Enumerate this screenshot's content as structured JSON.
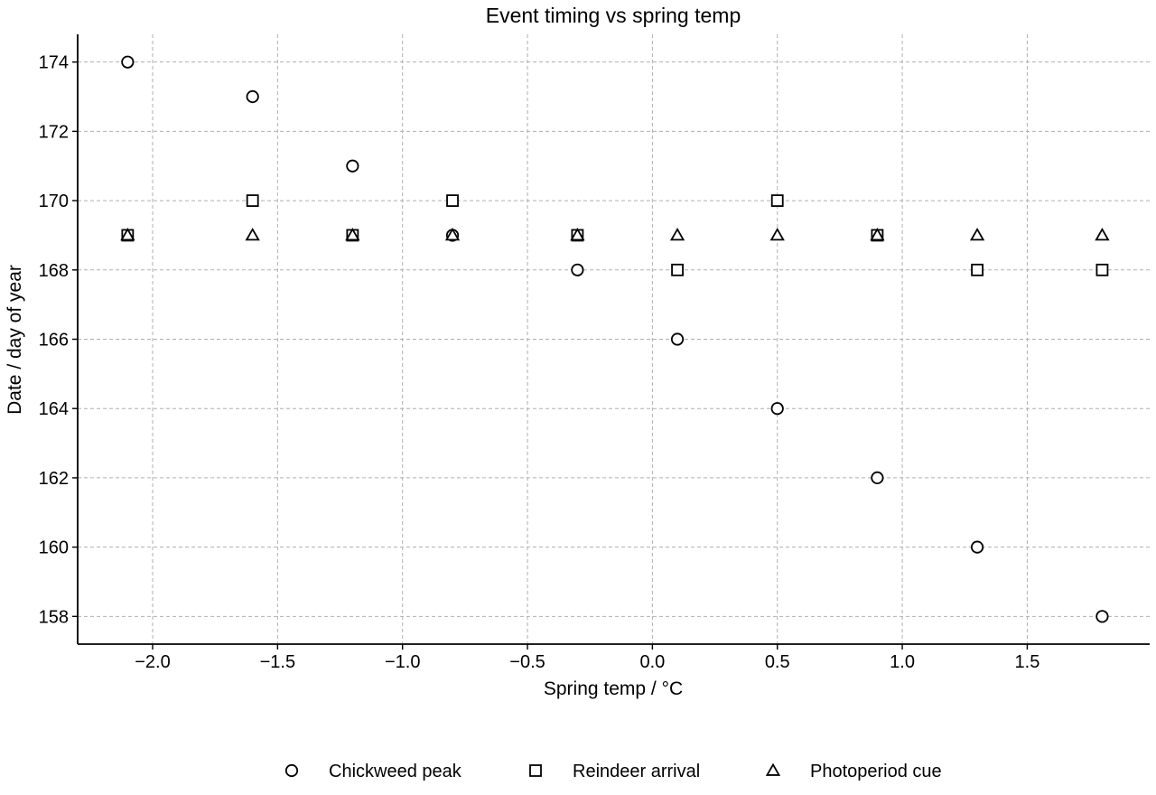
{
  "chart_data": {
    "type": "scatter",
    "title": "Event timing vs spring temp",
    "xlabel": "Spring temp / °C",
    "ylabel": "Date / day of year",
    "xlim": [
      -2.3,
      1.99
    ],
    "ylim": [
      157.2,
      174.8
    ],
    "xticks": [
      -2.0,
      -1.5,
      -1.0,
      -0.5,
      0.0,
      0.5,
      1.0,
      1.5
    ],
    "xtick_labels": [
      "−2.0",
      "−1.5",
      "−1.0",
      "−0.5",
      "0.0",
      "0.5",
      "1.0",
      "1.5"
    ],
    "yticks": [
      158,
      160,
      162,
      164,
      166,
      168,
      170,
      172,
      174
    ],
    "ytick_labels": [
      "158",
      "160",
      "162",
      "164",
      "166",
      "168",
      "170",
      "172",
      "174"
    ],
    "grid": true,
    "legend_position": "bottom-center",
    "x": [
      -2.1,
      -1.6,
      -1.2,
      -0.8,
      -0.3,
      0.1,
      0.5,
      0.9,
      1.3,
      1.8
    ],
    "series": [
      {
        "name": "Chickweed peak",
        "marker": "circle",
        "values": [
          174,
          173,
          171,
          169,
          168,
          166,
          164,
          162,
          160,
          158
        ]
      },
      {
        "name": "Reindeer arrival",
        "marker": "square",
        "values": [
          169,
          170,
          169,
          170,
          169,
          168,
          170,
          169,
          168,
          168
        ]
      },
      {
        "name": "Photoperiod cue",
        "marker": "triangle",
        "values": [
          169,
          169,
          169,
          169,
          169,
          169,
          169,
          169,
          169,
          169
        ]
      }
    ],
    "colors": {
      "marker_edge": "#000000",
      "marker_face": "#ffffff",
      "grid": "#b0b0b0"
    }
  }
}
